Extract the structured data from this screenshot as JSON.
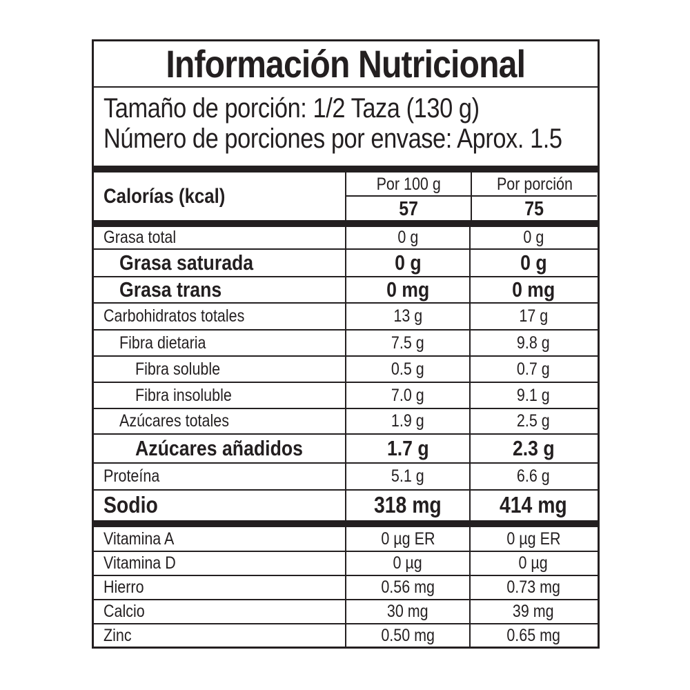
{
  "title": "Información Nutricional",
  "serving_size": "Tamaño de porción: 1/2 Taza (130 g)",
  "servings_per_container": "Número de porciones por envase: Aprox. 1.5",
  "calories": {
    "label": "Calorías (kcal)",
    "col1_header": "Por 100 g",
    "col2_header": "Por porción",
    "per_100g": "57",
    "per_serving": "75"
  },
  "nutrients": [
    {
      "name": "Grasa total",
      "per_100g": "0 g",
      "per_serving": "0 g",
      "style": "normal",
      "indent": 0
    },
    {
      "name": "Grasa saturada",
      "per_100g": "0 g",
      "per_serving": "0 g",
      "style": "bold",
      "indent": 1
    },
    {
      "name": "Grasa trans",
      "per_100g": "0 mg",
      "per_serving": "0 mg",
      "style": "bold",
      "indent": 1
    },
    {
      "name": "Carbohidratos totales",
      "per_100g": "13 g",
      "per_serving": "17 g",
      "style": "normal",
      "indent": 0
    },
    {
      "name": "Fibra dietaria",
      "per_100g": "7.5 g",
      "per_serving": "9.8 g",
      "style": "normal",
      "indent": 1
    },
    {
      "name": "Fibra soluble",
      "per_100g": "0.5 g",
      "per_serving": "0.7 g",
      "style": "normal",
      "indent": 2
    },
    {
      "name": "Fibra insoluble",
      "per_100g": "7.0 g",
      "per_serving": "9.1 g",
      "style": "normal",
      "indent": 2
    },
    {
      "name": "Azúcares totales",
      "per_100g": "1.9 g",
      "per_serving": "2.5 g",
      "style": "normal",
      "indent": 1
    },
    {
      "name": "Azúcares añadidos",
      "per_100g": "1.7 g",
      "per_serving": "2.3 g",
      "style": "bold",
      "indent": 2
    },
    {
      "name": "Proteína",
      "per_100g": "5.1 g",
      "per_serving": "6.6 g",
      "style": "normal",
      "indent": 0
    },
    {
      "name": "Sodio",
      "per_100g": "318 mg",
      "per_serving": "414 mg",
      "style": "big",
      "indent": 0
    }
  ],
  "micronutrients": [
    {
      "name": "Vitamina A",
      "per_100g": "0 µg ER",
      "per_serving": "0 µg ER"
    },
    {
      "name": "Vitamina D",
      "per_100g": "0 µg",
      "per_serving": "0 µg"
    },
    {
      "name": "Hierro",
      "per_100g": "0.56 mg",
      "per_serving": "0.73 mg"
    },
    {
      "name": "Calcio",
      "per_100g": "30 mg",
      "per_serving": "39 mg"
    },
    {
      "name": "Zinc",
      "per_100g": "0.50 mg",
      "per_serving": "0.65 mg"
    }
  ]
}
